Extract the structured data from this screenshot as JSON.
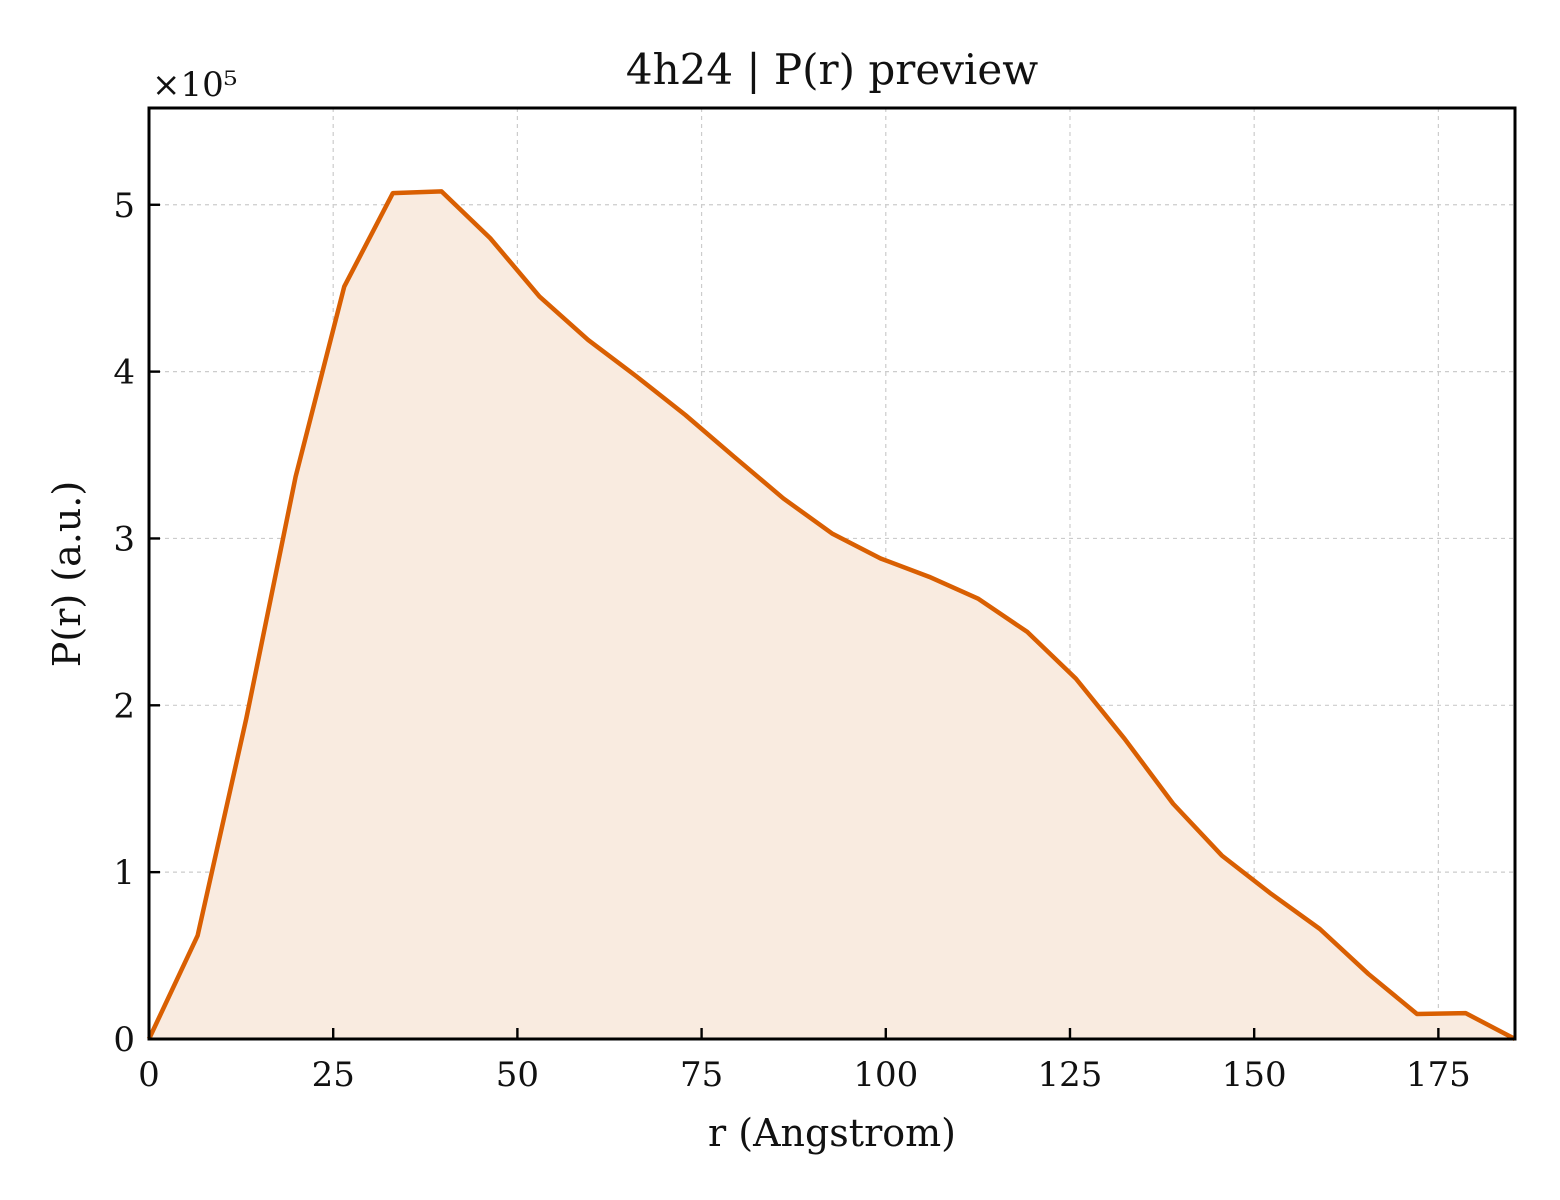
{
  "chart_data": {
    "type": "area",
    "title": "4h24 | P(r) preview",
    "xlabel": "r (Angstrom)",
    "ylabel": "P(r) (a.u.)",
    "y_scale_label": "×10⁵",
    "y_scale_factor": 100000,
    "xlim": [
      0,
      185.4
    ],
    "ylim": [
      0,
      558000
    ],
    "x_ticks": [
      0,
      25,
      50,
      75,
      100,
      125,
      150,
      175
    ],
    "x_tick_labels": [
      "0",
      "25",
      "50",
      "75",
      "100",
      "125",
      "150",
      "175"
    ],
    "y_ticks": [
      0,
      100000,
      200000,
      300000,
      400000,
      500000
    ],
    "y_tick_labels": [
      "0",
      "1",
      "2",
      "3",
      "4",
      "5"
    ],
    "grid": true,
    "line_color": "#d95f02",
    "fill_color": "#f9ebe0",
    "series": [
      {
        "x": [
          0,
          6.6,
          13.2,
          19.9,
          26.5,
          33.1,
          39.7,
          46.3,
          53.0,
          59.6,
          66.2,
          72.8,
          79.4,
          86.1,
          92.7,
          99.3,
          105.9,
          112.5,
          119.2,
          125.8,
          132.4,
          139.0,
          145.6,
          152.3,
          158.9,
          165.5,
          172.1,
          178.7,
          185.4
        ],
        "y": [
          0,
          62000,
          192000,
          337000,
          451000,
          507000,
          508000,
          480000,
          445000,
          419000,
          397000,
          374000,
          349000,
          324000,
          303000,
          288000,
          277000,
          264000,
          244000,
          216000,
          180000,
          141000,
          110000,
          87000,
          66000,
          39000,
          15000,
          15500,
          0
        ]
      }
    ]
  }
}
